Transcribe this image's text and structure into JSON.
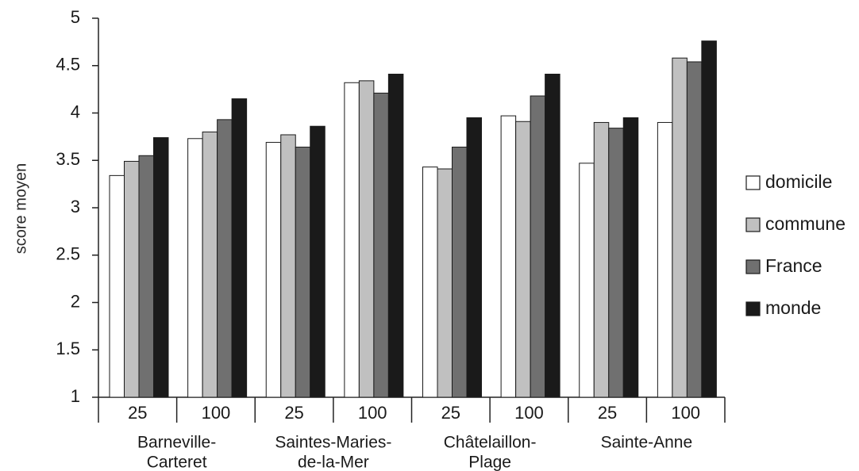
{
  "chart_data": {
    "type": "bar",
    "ylabel": "score moyen",
    "xlabel": "",
    "ylim": [
      1,
      5
    ],
    "yticks": [
      "1",
      "1.5",
      "2",
      "2.5",
      "3",
      "3.5",
      "4",
      "4.5",
      "5"
    ],
    "grid": false,
    "legend_position": "right",
    "groups": [
      {
        "label": [
          "Barneville-",
          "Carteret"
        ],
        "categories": [
          "25",
          "100"
        ]
      },
      {
        "label": [
          "Saintes-Maries-",
          "de-la-Mer"
        ],
        "categories": [
          "25",
          "100"
        ]
      },
      {
        "label": [
          "Châtelaillon-",
          "Plage"
        ],
        "categories": [
          "25",
          "100"
        ]
      },
      {
        "label": [
          "Sainte-Anne"
        ],
        "categories": [
          "25",
          "100"
        ]
      }
    ],
    "categories": [
      "Barneville-Carteret 25",
      "Barneville-Carteret 100",
      "Saintes-Maries-de-la-Mer 25",
      "Saintes-Maries-de-la-Mer 100",
      "Châtelaillon-Plage 25",
      "Châtelaillon-Plage 100",
      "Sainte-Anne 25",
      "Sainte-Anne 100"
    ],
    "series": [
      {
        "name": "domicile",
        "color": "#ffffff",
        "values": [
          3.34,
          3.73,
          3.69,
          4.32,
          3.43,
          3.97,
          3.47,
          3.9
        ]
      },
      {
        "name": "commune",
        "color": "#c0c0c0",
        "values": [
          3.49,
          3.8,
          3.77,
          4.34,
          3.41,
          3.91,
          3.9,
          4.58
        ]
      },
      {
        "name": "France",
        "color": "#707070",
        "values": [
          3.55,
          3.93,
          3.64,
          4.21,
          3.64,
          4.18,
          3.84,
          4.54
        ]
      },
      {
        "name": "monde",
        "color": "#1a1a1a",
        "values": [
          3.74,
          4.15,
          3.86,
          4.41,
          3.95,
          4.41,
          3.95,
          4.76
        ]
      }
    ]
  }
}
